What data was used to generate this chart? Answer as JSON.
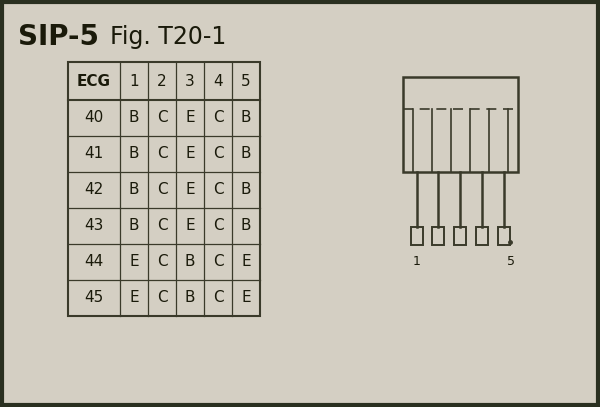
{
  "title_bold": "SIP-5",
  "title_normal": "Fig. T20-1",
  "bg_color": "#d4cfc3",
  "border_color": "#3a3a2a",
  "table_header": [
    "ECG",
    "1",
    "2",
    "3",
    "4",
    "5"
  ],
  "table_rows": [
    [
      "40",
      "B",
      "C",
      "E",
      "C",
      "B"
    ],
    [
      "41",
      "B",
      "C",
      "E",
      "C",
      "B"
    ],
    [
      "42",
      "B",
      "C",
      "E",
      "C",
      "B"
    ],
    [
      "43",
      "B",
      "C",
      "E",
      "C",
      "B"
    ],
    [
      "44",
      "E",
      "C",
      "B",
      "C",
      "E"
    ],
    [
      "45",
      "E",
      "C",
      "B",
      "C",
      "E"
    ]
  ],
  "line_color": "#3a3a2a",
  "text_color": "#1a1a0a",
  "pin_label_1": "1",
  "pin_label_5": "5",
  "frame_color": "#2a3020"
}
